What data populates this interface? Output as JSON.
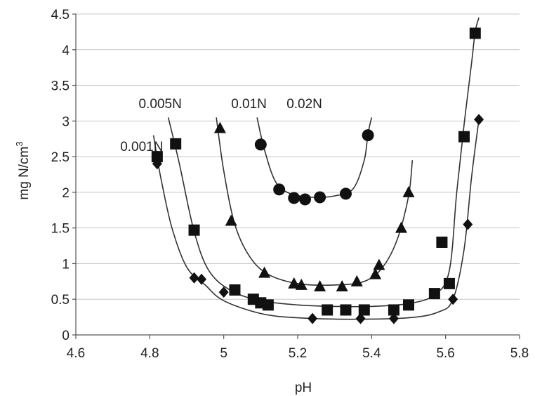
{
  "chart_data": {
    "type": "scatter",
    "xlabel": "pH",
    "ylabel": "mg N/cm",
    "ylabel_sup": "3",
    "xlim": [
      4.6,
      5.8
    ],
    "ylim": [
      0,
      4.5
    ],
    "xticks": [
      4.6,
      4.8,
      5.0,
      5.2,
      5.4,
      5.6,
      5.8
    ],
    "xtick_labels": [
      "4.6",
      "4.8",
      "5",
      "5.2",
      "5.4",
      "5.6",
      "5.8"
    ],
    "yticks": [
      0,
      0.5,
      1,
      1.5,
      2,
      2.5,
      3,
      3.5,
      4,
      4.5
    ],
    "ytick_labels": [
      "0",
      "0.5",
      "1",
      "1.5",
      "2",
      "2.5",
      "3",
      "3.5",
      "4",
      "4.5"
    ],
    "grid": true,
    "series": [
      {
        "name": "0.001N",
        "marker": "diamond",
        "label_anchor": [
          4.72,
          2.65
        ],
        "points": [
          [
            4.82,
            2.4
          ],
          [
            4.92,
            0.8
          ],
          [
            4.94,
            0.78
          ],
          [
            5.0,
            0.6
          ],
          [
            5.24,
            0.23
          ],
          [
            5.37,
            0.23
          ],
          [
            5.46,
            0.23
          ],
          [
            5.62,
            0.5
          ],
          [
            5.66,
            1.55
          ],
          [
            5.69,
            3.02
          ]
        ],
        "curve": [
          [
            4.81,
            2.8
          ],
          [
            4.83,
            2.2
          ],
          [
            4.86,
            1.5
          ],
          [
            4.9,
            0.95
          ],
          [
            4.95,
            0.7
          ],
          [
            5.0,
            0.48
          ],
          [
            5.1,
            0.3
          ],
          [
            5.2,
            0.24
          ],
          [
            5.35,
            0.22
          ],
          [
            5.5,
            0.24
          ],
          [
            5.58,
            0.32
          ],
          [
            5.62,
            0.5
          ],
          [
            5.65,
            1.2
          ],
          [
            5.67,
            2.2
          ],
          [
            5.69,
            3.02
          ]
        ]
      },
      {
        "name": "0.005N",
        "marker": "square",
        "label_anchor": [
          4.77,
          3.25
        ],
        "points": [
          [
            4.82,
            2.5
          ],
          [
            4.87,
            2.68
          ],
          [
            4.92,
            1.47
          ],
          [
            5.03,
            0.63
          ],
          [
            5.08,
            0.5
          ],
          [
            5.1,
            0.45
          ],
          [
            5.12,
            0.42
          ],
          [
            5.28,
            0.35
          ],
          [
            5.33,
            0.35
          ],
          [
            5.38,
            0.35
          ],
          [
            5.46,
            0.35
          ],
          [
            5.5,
            0.42
          ],
          [
            5.57,
            0.58
          ],
          [
            5.59,
            1.3
          ],
          [
            5.61,
            0.72
          ],
          [
            5.65,
            2.78
          ],
          [
            5.68,
            4.23
          ]
        ],
        "curve": [
          [
            4.85,
            3.05
          ],
          [
            4.88,
            2.4
          ],
          [
            4.92,
            1.45
          ],
          [
            4.96,
            0.9
          ],
          [
            5.02,
            0.62
          ],
          [
            5.1,
            0.48
          ],
          [
            5.2,
            0.42
          ],
          [
            5.3,
            0.4
          ],
          [
            5.4,
            0.4
          ],
          [
            5.5,
            0.44
          ],
          [
            5.57,
            0.56
          ],
          [
            5.61,
            0.9
          ],
          [
            5.63,
            2.0
          ],
          [
            5.65,
            2.95
          ],
          [
            5.67,
            3.8
          ],
          [
            5.68,
            4.25
          ],
          [
            5.69,
            4.45
          ]
        ]
      },
      {
        "name": "0.01N",
        "marker": "triangle",
        "label_anchor": [
          5.02,
          3.25
        ],
        "points": [
          [
            4.99,
            2.9
          ],
          [
            5.02,
            1.6
          ],
          [
            5.11,
            0.87
          ],
          [
            5.19,
            0.72
          ],
          [
            5.21,
            0.7
          ],
          [
            5.26,
            0.68
          ],
          [
            5.32,
            0.68
          ],
          [
            5.36,
            0.75
          ],
          [
            5.41,
            0.85
          ],
          [
            5.42,
            0.98
          ],
          [
            5.48,
            1.5
          ],
          [
            5.5,
            2.0
          ]
        ],
        "curve": [
          [
            4.98,
            3.05
          ],
          [
            5.0,
            2.3
          ],
          [
            5.03,
            1.55
          ],
          [
            5.07,
            1.1
          ],
          [
            5.12,
            0.85
          ],
          [
            5.2,
            0.72
          ],
          [
            5.3,
            0.7
          ],
          [
            5.38,
            0.75
          ],
          [
            5.43,
            0.95
          ],
          [
            5.47,
            1.35
          ],
          [
            5.5,
            1.95
          ],
          [
            5.51,
            2.45
          ]
        ]
      },
      {
        "name": "0.02N",
        "marker": "circle",
        "label_anchor": [
          5.17,
          3.25
        ],
        "points": [
          [
            5.1,
            2.67
          ],
          [
            5.15,
            2.04
          ],
          [
            5.19,
            1.92
          ],
          [
            5.22,
            1.9
          ],
          [
            5.26,
            1.93
          ],
          [
            5.33,
            1.98
          ],
          [
            5.39,
            2.8
          ]
        ],
        "curve": [
          [
            5.09,
            3.05
          ],
          [
            5.11,
            2.6
          ],
          [
            5.14,
            2.15
          ],
          [
            5.18,
            1.98
          ],
          [
            5.24,
            1.93
          ],
          [
            5.3,
            1.95
          ],
          [
            5.35,
            2.05
          ],
          [
            5.38,
            2.45
          ],
          [
            5.39,
            2.82
          ],
          [
            5.4,
            3.05
          ]
        ]
      }
    ]
  }
}
